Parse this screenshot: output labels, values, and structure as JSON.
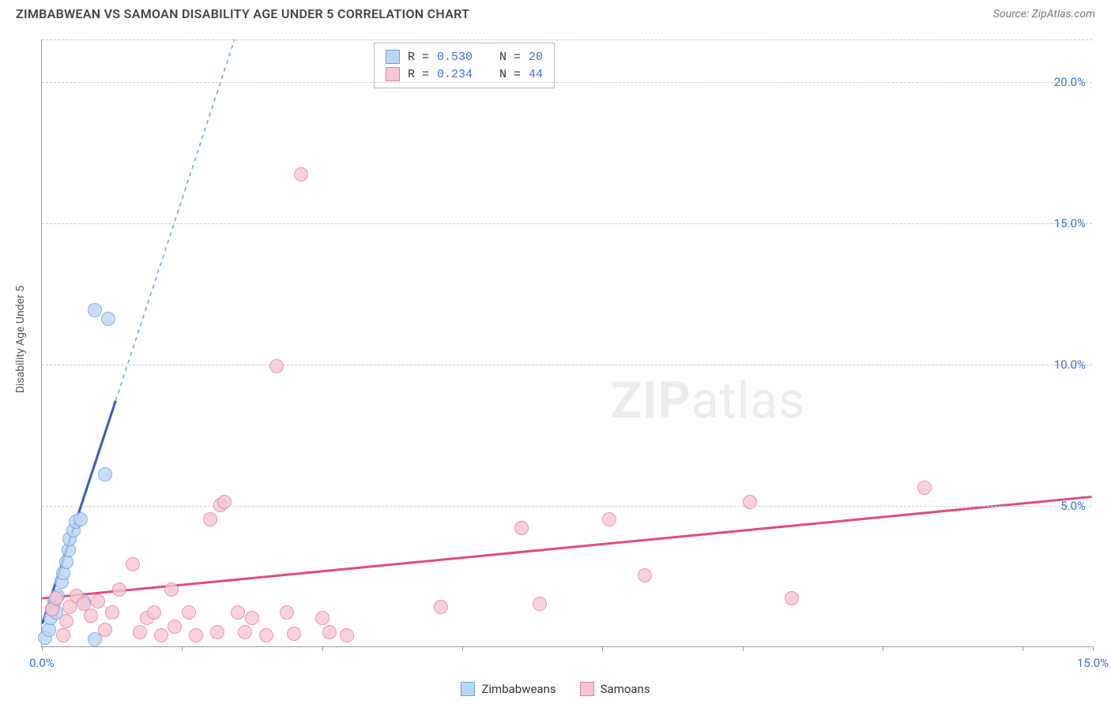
{
  "title": "ZIMBABWEAN VS SAMOAN DISABILITY AGE UNDER 5 CORRELATION CHART",
  "source": "Source: ZipAtlas.com",
  "y_axis_label": "Disability Age Under 5",
  "watermark_bold": "ZIP",
  "watermark_light": "atlas",
  "chart": {
    "type": "scatter",
    "background_color": "#ffffff",
    "grid_color": "#cccccc",
    "grid_style": "dashed",
    "xlim": [
      0,
      15
    ],
    "ylim": [
      0,
      21.5
    ],
    "x_ticks": [
      0,
      2,
      4,
      6,
      8,
      10,
      12,
      14,
      15
    ],
    "x_tick_labels_visible": {
      "0": "0.0%",
      "15": "15.0%"
    },
    "y_gridlines": [
      5,
      10,
      15,
      20,
      21.5
    ],
    "y_tick_labels": {
      "5": "5.0%",
      "10": "10.0%",
      "15": "15.0%",
      "20": "20.0%"
    },
    "axis_label_color": "#3b6fd6",
    "axis_label_fontsize": 15,
    "series": [
      {
        "name": "Zimbabweans",
        "legend_label": "Zimbabweans",
        "marker_fill": "#bcd6f5",
        "marker_stroke": "#6a9fe0",
        "marker_radius": 9,
        "marker_opacity": 0.8,
        "line_color": "#2d5fc4",
        "line_width": 3,
        "dash_color": "#6a9fe0",
        "R_label": "R = ",
        "R_value": "0.530",
        "N_label": "N = ",
        "N_value": "20",
        "trend_solid": {
          "x1": 0.0,
          "y1": 0.8,
          "x2": 1.05,
          "y2": 8.7
        },
        "trend_dash": {
          "x1": 1.05,
          "y1": 8.7,
          "x2": 2.75,
          "y2": 21.5
        },
        "points": [
          [
            0.05,
            0.3
          ],
          [
            0.1,
            0.6
          ],
          [
            0.12,
            1.0
          ],
          [
            0.15,
            1.3
          ],
          [
            0.18,
            1.6
          ],
          [
            0.2,
            1.2
          ],
          [
            0.22,
            1.8
          ],
          [
            0.28,
            2.3
          ],
          [
            0.3,
            2.6
          ],
          [
            0.35,
            3.0
          ],
          [
            0.38,
            3.4
          ],
          [
            0.4,
            3.8
          ],
          [
            0.45,
            4.1
          ],
          [
            0.48,
            4.4
          ],
          [
            0.55,
            4.5
          ],
          [
            0.6,
            1.6
          ],
          [
            0.75,
            0.25
          ],
          [
            0.9,
            6.1
          ],
          [
            0.75,
            11.9
          ],
          [
            0.95,
            11.6
          ]
        ]
      },
      {
        "name": "Samoans",
        "legend_label": "Samoans",
        "marker_fill": "#f7c6d4",
        "marker_stroke": "#e67ba1",
        "marker_radius": 9,
        "marker_opacity": 0.8,
        "line_color": "#e24a85",
        "line_width": 3,
        "R_label": "R = ",
        "R_value": "0.234",
        "N_label": "N = ",
        "N_value": "44",
        "trend_solid": {
          "x1": 0.0,
          "y1": 1.7,
          "x2": 15.0,
          "y2": 5.3
        },
        "points": [
          [
            0.15,
            1.3
          ],
          [
            0.2,
            1.7
          ],
          [
            0.3,
            0.4
          ],
          [
            0.35,
            0.9
          ],
          [
            0.4,
            1.4
          ],
          [
            0.5,
            1.8
          ],
          [
            0.6,
            1.5
          ],
          [
            0.7,
            1.1
          ],
          [
            0.8,
            1.6
          ],
          [
            0.9,
            0.6
          ],
          [
            1.0,
            1.2
          ],
          [
            1.1,
            2.0
          ],
          [
            1.3,
            2.9
          ],
          [
            1.4,
            0.5
          ],
          [
            1.5,
            1.0
          ],
          [
            1.6,
            1.2
          ],
          [
            1.7,
            0.4
          ],
          [
            1.85,
            2.0
          ],
          [
            1.9,
            0.7
          ],
          [
            2.1,
            1.2
          ],
          [
            2.2,
            0.4
          ],
          [
            2.4,
            4.5
          ],
          [
            2.5,
            0.5
          ],
          [
            2.55,
            5.0
          ],
          [
            2.6,
            5.1
          ],
          [
            2.8,
            1.2
          ],
          [
            2.9,
            0.5
          ],
          [
            3.0,
            1.0
          ],
          [
            3.2,
            0.4
          ],
          [
            3.35,
            9.9
          ],
          [
            3.5,
            1.2
          ],
          [
            3.6,
            0.45
          ],
          [
            3.7,
            16.7
          ],
          [
            4.0,
            1.0
          ],
          [
            4.1,
            0.5
          ],
          [
            4.35,
            0.4
          ],
          [
            5.7,
            1.4
          ],
          [
            6.85,
            4.2
          ],
          [
            7.1,
            1.5
          ],
          [
            8.1,
            4.5
          ],
          [
            8.6,
            2.5
          ],
          [
            10.1,
            5.1
          ],
          [
            10.7,
            1.7
          ],
          [
            12.6,
            5.6
          ]
        ]
      }
    ]
  }
}
